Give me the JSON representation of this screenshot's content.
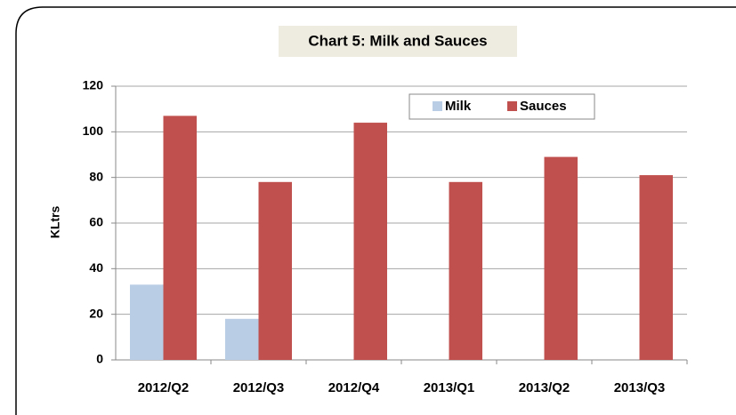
{
  "chart_data": {
    "type": "bar",
    "title": "Chart 5: Milk and Sauces",
    "y_label": "KLtrs",
    "categories": [
      "2012/Q2",
      "2012/Q3",
      "2012/Q4",
      "2013/Q1",
      "2013/Q2",
      "2013/Q3"
    ],
    "series": [
      {
        "name": "Milk",
        "color": "#b9cde5",
        "values": [
          33,
          18,
          0,
          0,
          0,
          0
        ]
      },
      {
        "name": "Sauces",
        "color": "#c0504d",
        "values": [
          107,
          78,
          104,
          78,
          89,
          81
        ]
      }
    ],
    "ylim": [
      0,
      120
    ],
    "yticks": [
      0,
      20,
      40,
      60,
      80,
      100,
      120
    ],
    "grid": true
  }
}
